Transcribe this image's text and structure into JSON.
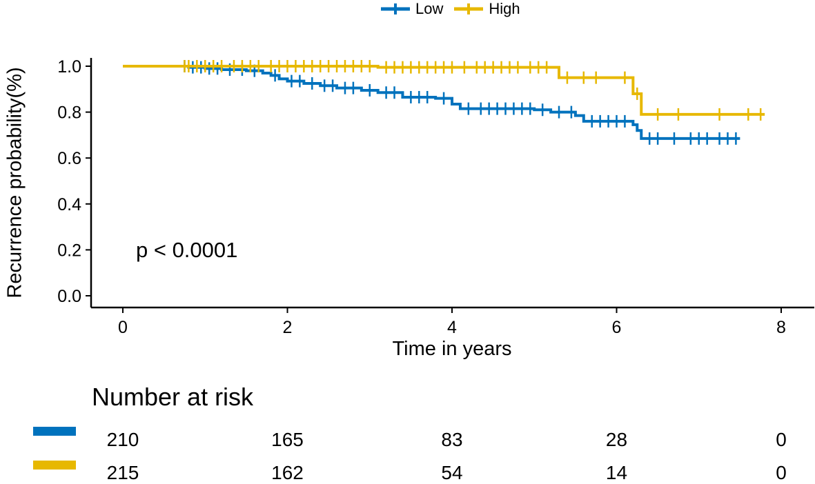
{
  "legend": {
    "items": [
      {
        "label": "Low",
        "color": "#0072BD"
      },
      {
        "label": "High",
        "color": "#E7B800"
      }
    ]
  },
  "p_value": "p < 0.0001",
  "chart_data": {
    "type": "line",
    "subtype": "kaplan-meier-step",
    "title": "",
    "xlabel": "Time in years",
    "ylabel": "Recurrence probability(%)",
    "xlim": [
      0,
      8
    ],
    "ylim": [
      0,
      1
    ],
    "x_ticks": [
      0,
      2,
      4,
      6,
      8
    ],
    "x_tick_labels": [
      "0",
      "2",
      "4",
      "6",
      "8"
    ],
    "y_ticks": [
      0,
      0.2,
      0.4,
      0.6,
      0.8,
      1.0
    ],
    "y_tick_labels": [
      "0.0",
      "0.2",
      "0.4",
      "0.6",
      "0.8",
      "1.0"
    ],
    "grid": false,
    "legend_position": "top",
    "series": [
      {
        "name": "Low",
        "color": "#0072BD",
        "x": [
          0,
          0.8,
          1.0,
          1.2,
          1.5,
          1.7,
          1.8,
          1.9,
          2.0,
          2.2,
          2.4,
          2.6,
          2.9,
          3.1,
          3.4,
          3.8,
          4.0,
          4.1,
          5.0,
          5.2,
          5.5,
          5.6,
          6.2,
          6.25,
          6.3,
          7.5
        ],
        "y": [
          1.0,
          0.995,
          0.99,
          0.985,
          0.98,
          0.97,
          0.96,
          0.945,
          0.935,
          0.925,
          0.915,
          0.905,
          0.895,
          0.885,
          0.865,
          0.86,
          0.835,
          0.815,
          0.81,
          0.8,
          0.785,
          0.76,
          0.745,
          0.72,
          0.685,
          0.685
        ],
        "censor_x": [
          0.75,
          0.85,
          0.95,
          1.05,
          1.15,
          1.3,
          1.45,
          1.6,
          1.85,
          2.05,
          2.15,
          2.3,
          2.45,
          2.55,
          2.7,
          2.8,
          3.0,
          3.2,
          3.3,
          3.5,
          3.6,
          3.7,
          3.9,
          4.2,
          4.35,
          4.45,
          4.55,
          4.65,
          4.75,
          4.85,
          4.95,
          5.1,
          5.3,
          5.45,
          5.7,
          5.8,
          5.9,
          6.0,
          6.1,
          6.4,
          6.5,
          6.7,
          6.9,
          7.0,
          7.1,
          7.25,
          7.35,
          7.45
        ]
      },
      {
        "name": "High",
        "color": "#E7B800",
        "x": [
          0,
          1.7,
          3.1,
          5.3,
          6.2,
          6.3,
          7.8
        ],
        "y": [
          1.0,
          1.0,
          0.995,
          0.95,
          0.88,
          0.79,
          0.79
        ],
        "censor_x": [
          0.75,
          0.8,
          0.9,
          1.0,
          1.1,
          1.2,
          1.35,
          1.45,
          1.55,
          1.65,
          1.8,
          1.9,
          2.0,
          2.1,
          2.2,
          2.3,
          2.4,
          2.5,
          2.6,
          2.7,
          2.8,
          2.9,
          3.0,
          3.2,
          3.3,
          3.4,
          3.5,
          3.6,
          3.7,
          3.8,
          3.9,
          4.0,
          4.15,
          4.3,
          4.4,
          4.5,
          4.6,
          4.7,
          4.8,
          4.95,
          5.05,
          5.15,
          5.4,
          5.6,
          5.75,
          6.1,
          6.25,
          6.5,
          6.75,
          7.25,
          7.6,
          7.75
        ]
      }
    ],
    "risk_table": {
      "title": "Number at risk",
      "times": [
        0,
        2,
        4,
        6,
        8
      ],
      "rows": [
        {
          "name": "Low",
          "color": "#0072BD",
          "counts": [
            "210",
            "165",
            "83",
            "28",
            "0"
          ]
        },
        {
          "name": "High",
          "color": "#E7B800",
          "counts": [
            "215",
            "162",
            "54",
            "14",
            "0"
          ]
        }
      ]
    }
  }
}
